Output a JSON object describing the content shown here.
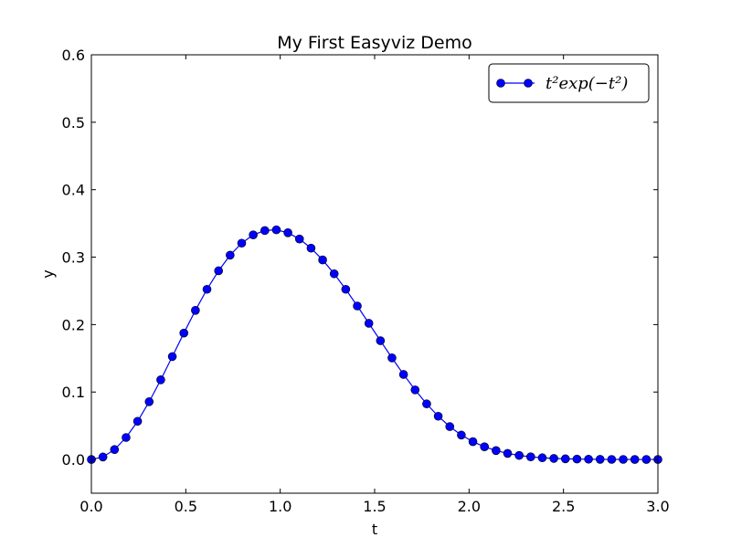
{
  "chart_data": {
    "type": "line",
    "title": "My First Easyviz Demo",
    "xlabel": "t",
    "ylabel": "y",
    "xlim": [
      0,
      3
    ],
    "ylim": [
      -0.05,
      0.6
    ],
    "xticks": [
      "0.0",
      "0.5",
      "1.0",
      "1.5",
      "2.0",
      "2.5",
      "3.0"
    ],
    "xtick_values": [
      0,
      0.5,
      1.0,
      1.5,
      2.0,
      2.5,
      3.0
    ],
    "yticks": [
      "0.0",
      "0.1",
      "0.2",
      "0.3",
      "0.4",
      "0.5",
      "0.6"
    ],
    "ytick_values": [
      0,
      0.1,
      0.2,
      0.3,
      0.4,
      0.5,
      0.6
    ],
    "grid": false,
    "legend": {
      "position": "top-right",
      "entries": [
        "t²exp(−t²)"
      ]
    },
    "series": [
      {
        "name": "t²exp(−t²)",
        "color": "#0000ff",
        "marker": "circle",
        "x": [
          0.0,
          0.0612,
          0.1224,
          0.1837,
          0.2449,
          0.3061,
          0.3673,
          0.4286,
          0.4898,
          0.551,
          0.6122,
          0.6735,
          0.7347,
          0.7959,
          0.8571,
          0.9184,
          0.9796,
          1.0408,
          1.102,
          1.1633,
          1.2245,
          1.2857,
          1.3469,
          1.4082,
          1.4694,
          1.5306,
          1.5918,
          1.6531,
          1.7143,
          1.7755,
          1.8367,
          1.898,
          1.9592,
          2.0204,
          2.0816,
          2.1429,
          2.2041,
          2.2653,
          2.3265,
          2.3878,
          2.449,
          2.5102,
          2.5714,
          2.6327,
          2.6939,
          2.7551,
          2.8163,
          2.8776,
          2.9388,
          3.0
        ],
        "y": [
          0.0,
          0.0037,
          0.0147,
          0.0326,
          0.0566,
          0.0856,
          0.1181,
          0.1526,
          0.1874,
          0.2211,
          0.2523,
          0.2798,
          0.3029,
          0.3207,
          0.333,
          0.3395,
          0.3405,
          0.3362,
          0.3269,
          0.3133,
          0.2959,
          0.2753,
          0.2523,
          0.2276,
          0.2019,
          0.1761,
          0.1506,
          0.1261,
          0.1032,
          0.0824,
          0.0641,
          0.0487,
          0.0362,
          0.0264,
          0.0188,
          0.0132,
          0.009,
          0.006,
          0.0039,
          0.0025,
          0.0016,
          0.001,
          0.0006,
          0.0004,
          0.0002,
          0.0001,
          0.0001,
          0.0,
          0.0,
          0.0
        ]
      }
    ]
  }
}
